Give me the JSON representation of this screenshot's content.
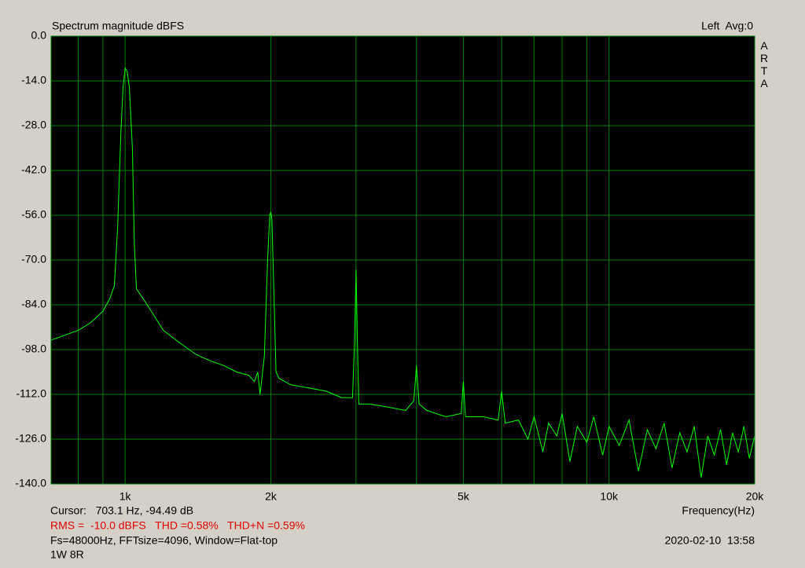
{
  "chart_data": {
    "type": "line",
    "title": "Spectrum magnitude dBFS",
    "status": "Left  Avg:0",
    "watermark": "ARTA",
    "xlabel": "Frequency(Hz)",
    "annotations": [
      "Cursor:   703.1 Hz, -94.49 dB",
      "RMS =  -10.0 dBFS   THD =0.58%   THD+N =0.59%",
      "Fs=48000Hz, FFTsize=4096, Window=Flat-top",
      "1W 8R",
      "2020-02-10  13:58"
    ],
    "annotation_colors": [
      "#000000",
      "#e00000",
      "#000000",
      "#000000",
      "#000000"
    ],
    "log_x": true,
    "grid": true,
    "grid_color": "#008000",
    "background": "#000000",
    "xlim": [
      703.1,
      20000
    ],
    "ylim": [
      -140,
      0
    ],
    "xticks": [
      {
        "value": 1000,
        "label": "1k"
      },
      {
        "value": 2000,
        "label": "2k"
      },
      {
        "value": 5000,
        "label": "5k"
      },
      {
        "value": 10000,
        "label": "10k"
      },
      {
        "value": 20000,
        "label": "20k"
      }
    ],
    "xminor": [
      800,
      900,
      3000,
      4000,
      6000,
      7000,
      8000,
      9000
    ],
    "yticks": [
      {
        "value": 0,
        "label": "0.0"
      },
      {
        "value": -14,
        "label": "-14.0"
      },
      {
        "value": -28,
        "label": "-28.0"
      },
      {
        "value": -42,
        "label": "-42.0"
      },
      {
        "value": -56,
        "label": "-56.0"
      },
      {
        "value": -70,
        "label": "-70.0"
      },
      {
        "value": -84,
        "label": "-84.0"
      },
      {
        "value": -98,
        "label": "-98.0"
      },
      {
        "value": -112,
        "label": "-112.0"
      },
      {
        "value": -126,
        "label": "-126.0"
      },
      {
        "value": -140,
        "label": "-140.0"
      }
    ],
    "color": "#00ff00",
    "x": [
      703.1,
      750,
      800,
      850,
      900,
      930,
      950,
      965,
      980,
      990,
      1000,
      1010,
      1020,
      1035,
      1045,
      1055,
      1100,
      1200,
      1300,
      1400,
      1500,
      1600,
      1700,
      1800,
      1850,
      1880,
      1900,
      1940,
      1970,
      1990,
      2000,
      2010,
      2030,
      2050,
      2080,
      2200,
      2400,
      2600,
      2800,
      2950,
      2980,
      3000,
      3020,
      3040,
      3200,
      3500,
      3800,
      3950,
      4000,
      4050,
      4200,
      4600,
      4950,
      5000,
      5050,
      5500,
      5900,
      6000,
      6100,
      6500,
      6800,
      7000,
      7300,
      7500,
      7800,
      8000,
      8300,
      8600,
      9000,
      9300,
      9700,
      10000,
      10500,
      11000,
      11500,
      12000,
      12500,
      13000,
      13500,
      14000,
      14500,
      15000,
      15500,
      16000,
      16500,
      17000,
      17500,
      18000,
      18500,
      19000,
      19500,
      20000
    ],
    "values": [
      -95,
      -93.5,
      -92,
      -89.5,
      -86,
      -82,
      -78,
      -60,
      -30,
      -16,
      -10,
      -11,
      -16,
      -35,
      -65,
      -79,
      -83,
      -92,
      -96,
      -99.5,
      -101.5,
      -103,
      -105,
      -106,
      -108,
      -105,
      -112,
      -100,
      -70,
      -56,
      -55,
      -57,
      -80,
      -105,
      -107,
      -109,
      -110,
      -111,
      -113,
      -113,
      -95,
      -73,
      -95,
      -115,
      -115,
      -116,
      -117,
      -114,
      -103,
      -115,
      -117,
      -119,
      -118,
      -108,
      -119,
      -119,
      -120,
      -111,
      -121,
      -120,
      -126,
      -119,
      -130,
      -121,
      -125,
      -118,
      -133,
      -122,
      -127,
      -119,
      -131,
      -122,
      -128,
      -120,
      -136,
      -123,
      -129,
      -121,
      -135,
      -124,
      -130,
      -122,
      -138,
      -125,
      -131,
      -123,
      -134,
      -124,
      -130,
      -122,
      -132,
      -125
    ]
  }
}
